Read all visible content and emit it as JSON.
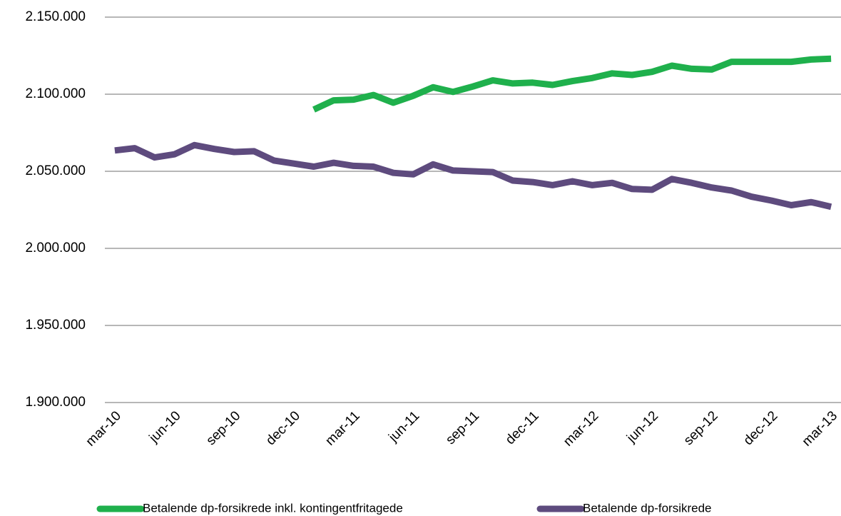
{
  "chart_data": {
    "type": "line",
    "categories": [
      "mar-10",
      null,
      null,
      "jun-10",
      null,
      null,
      "sep-10",
      null,
      null,
      "dec-10",
      null,
      null,
      "mar-11",
      null,
      null,
      "jun-11",
      null,
      null,
      "sep-11",
      null,
      null,
      "dec-11",
      null,
      null,
      "mar-12",
      null,
      null,
      "jun-12",
      null,
      null,
      "sep-12",
      null,
      null,
      "dec-12",
      null,
      null,
      "mar-13"
    ],
    "series": [
      {
        "name": "Betalende dp-forsikrede inkl. kontingentfritagede",
        "color": "#1fb04c",
        "values": [
          null,
          null,
          null,
          null,
          null,
          null,
          null,
          null,
          null,
          null,
          2090000,
          2096000,
          2096500,
          2099500,
          2094500,
          2099000,
          2104500,
          2101500,
          2105000,
          2109000,
          2107000,
          2107500,
          2106000,
          2108500,
          2110500,
          2113500,
          2112500,
          2114500,
          2118500,
          2116500,
          2116000,
          2121000,
          2121000,
          2121000,
          2121000,
          2122500,
          2123000
        ]
      },
      {
        "name": "Betalende dp-forsikrede",
        "color": "#5e4b7e",
        "values": [
          2063500,
          2065000,
          2059000,
          2061000,
          2067000,
          2064500,
          2062500,
          2063000,
          2057000,
          2055000,
          2053000,
          2055500,
          2053500,
          2053000,
          2049000,
          2048000,
          2054500,
          2050500,
          2050000,
          2049500,
          2044000,
          2043000,
          2041000,
          2043500,
          2041000,
          2042500,
          2038500,
          2038000,
          2045000,
          2042500,
          2039500,
          2037500,
          2033500,
          2031000,
          2028000,
          2030000,
          2027000
        ]
      }
    ],
    "ylim": [
      1900000,
      2150000
    ],
    "yticks": [
      {
        "value": 1900000,
        "label": "1.900.000"
      },
      {
        "value": 1950000,
        "label": "1.950.000"
      },
      {
        "value": 2000000,
        "label": "2.000.000"
      },
      {
        "value": 2050000,
        "label": "2.050.000"
      },
      {
        "value": 2100000,
        "label": "2.100.000"
      },
      {
        "value": 2150000,
        "label": "2.150.000"
      }
    ],
    "grid": true,
    "legend": "bottom"
  }
}
